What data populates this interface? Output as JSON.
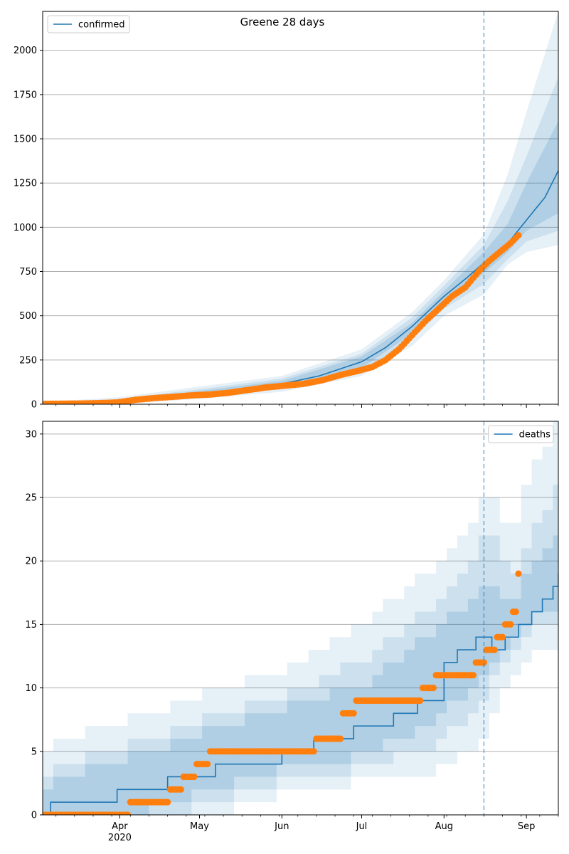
{
  "figure": {
    "suptitle": "Greene 28 days"
  },
  "chart_data": [
    {
      "type": "line",
      "legend": {
        "label": "confirmed",
        "placement": "top-left"
      },
      "title": "Greene 28 days",
      "ylim": [
        0,
        2220
      ],
      "xlim": [
        "2020-03-03",
        "2020-09-13"
      ],
      "y_ticks": [
        0,
        250,
        500,
        750,
        1000,
        1250,
        1500,
        1750,
        2000
      ],
      "grid": "y",
      "forecast_start": "2020-08-16",
      "x_tick_labels": [
        {
          "date": "2020-04-01",
          "label": "Apr",
          "sub": "2020"
        },
        {
          "date": "2020-05-01",
          "label": "May",
          "sub": ""
        },
        {
          "date": "2020-06-01",
          "label": "Jun",
          "sub": ""
        },
        {
          "date": "2020-07-01",
          "label": "Jul",
          "sub": ""
        },
        {
          "date": "2020-08-01",
          "label": "Aug",
          "sub": ""
        },
        {
          "date": "2020-09-01",
          "label": "Sep",
          "sub": ""
        }
      ],
      "model_line": {
        "x": [
          "2020-03-03",
          "2020-03-20",
          "2020-04-01",
          "2020-04-15",
          "2020-05-01",
          "2020-05-15",
          "2020-06-01",
          "2020-06-15",
          "2020-07-01",
          "2020-07-10",
          "2020-07-20",
          "2020-08-01",
          "2020-08-10",
          "2020-08-16",
          "2020-08-25",
          "2020-09-01",
          "2020-09-08",
          "2020-09-13"
        ],
        "y": [
          5,
          8,
          15,
          35,
          60,
          80,
          115,
          160,
          240,
          320,
          440,
          610,
          720,
          800,
          910,
          1040,
          1170,
          1320
        ]
      },
      "bands": [
        {
          "x": [
            "2020-03-03",
            "2020-04-01",
            "2020-05-01",
            "2020-06-01",
            "2020-07-01",
            "2020-07-20",
            "2020-08-01",
            "2020-08-16",
            "2020-08-25",
            "2020-09-01",
            "2020-09-13"
          ],
          "lo": [
            0,
            2,
            30,
            70,
            160,
            330,
            500,
            620,
            790,
            860,
            900
          ],
          "hi": [
            12,
            40,
            100,
            160,
            310,
            520,
            700,
            960,
            1300,
            1650,
            2220
          ]
        },
        {
          "x": [
            "2020-03-03",
            "2020-04-01",
            "2020-05-01",
            "2020-06-01",
            "2020-07-01",
            "2020-07-20",
            "2020-08-01",
            "2020-08-16",
            "2020-08-25",
            "2020-09-01",
            "2020-09-13"
          ],
          "lo": [
            0,
            6,
            40,
            85,
            185,
            370,
            540,
            680,
            820,
            920,
            980
          ],
          "hi": [
            9,
            30,
            85,
            145,
            285,
            490,
            670,
            900,
            1150,
            1400,
            1850
          ]
        },
        {
          "x": [
            "2020-03-03",
            "2020-04-01",
            "2020-05-01",
            "2020-06-01",
            "2020-07-01",
            "2020-07-20",
            "2020-08-01",
            "2020-08-16",
            "2020-08-25",
            "2020-09-01",
            "2020-09-13"
          ],
          "lo": [
            2,
            10,
            48,
            95,
            205,
            400,
            570,
            740,
            860,
            980,
            1080
          ],
          "hi": [
            7,
            22,
            75,
            132,
            270,
            460,
            640,
            860,
            1020,
            1250,
            1600
          ]
        }
      ],
      "observed": {
        "x": [
          "2020-03-03",
          "2020-03-10",
          "2020-03-17",
          "2020-03-24",
          "2020-03-31",
          "2020-04-07",
          "2020-04-14",
          "2020-04-21",
          "2020-04-28",
          "2020-05-05",
          "2020-05-12",
          "2020-05-19",
          "2020-05-26",
          "2020-06-02",
          "2020-06-09",
          "2020-06-16",
          "2020-06-23",
          "2020-06-30",
          "2020-07-05",
          "2020-07-10",
          "2020-07-15",
          "2020-07-20",
          "2020-07-25",
          "2020-07-30",
          "2020-08-04",
          "2020-08-09",
          "2020-08-14",
          "2020-08-18",
          "2020-08-22",
          "2020-08-26",
          "2020-08-29"
        ],
        "y": [
          2,
          3,
          4,
          6,
          10,
          25,
          35,
          42,
          50,
          55,
          65,
          80,
          95,
          105,
          115,
          135,
          165,
          190,
          210,
          250,
          310,
          390,
          470,
          540,
          610,
          660,
          750,
          810,
          860,
          910,
          955
        ]
      }
    },
    {
      "type": "line",
      "legend": {
        "label": "deaths",
        "placement": "top-right"
      },
      "ylim": [
        0,
        31
      ],
      "xlim": [
        "2020-03-03",
        "2020-09-13"
      ],
      "y_ticks": [
        0,
        5,
        10,
        15,
        20,
        25,
        30
      ],
      "grid": "y",
      "forecast_start": "2020-08-16",
      "x_tick_labels": [
        {
          "date": "2020-04-01",
          "label": "Apr",
          "sub": "2020"
        },
        {
          "date": "2020-05-01",
          "label": "May",
          "sub": ""
        },
        {
          "date": "2020-06-01",
          "label": "Jun",
          "sub": ""
        },
        {
          "date": "2020-07-01",
          "label": "Jul",
          "sub": ""
        },
        {
          "date": "2020-08-01",
          "label": "Aug",
          "sub": ""
        },
        {
          "date": "2020-09-01",
          "label": "Sep",
          "sub": ""
        }
      ],
      "model_line": {
        "x": [
          "2020-03-03",
          "2020-03-06",
          "2020-03-31",
          "2020-04-19",
          "2020-05-07",
          "2020-06-01",
          "2020-06-13",
          "2020-06-28",
          "2020-07-13",
          "2020-07-22",
          "2020-08-01",
          "2020-08-06",
          "2020-08-13",
          "2020-08-19",
          "2020-08-24",
          "2020-08-29",
          "2020-09-03",
          "2020-09-07",
          "2020-09-11",
          "2020-09-13"
        ],
        "y": [
          0,
          1,
          2,
          3,
          4,
          5,
          6,
          7,
          8,
          9,
          12,
          13,
          14,
          13,
          14,
          15,
          16,
          17,
          18,
          19
        ]
      },
      "bands": [
        {
          "x": [
            "2020-03-03",
            "2020-04-01",
            "2020-05-01",
            "2020-06-01",
            "2020-07-01",
            "2020-08-01",
            "2020-08-16",
            "2020-08-25",
            "2020-09-01",
            "2020-09-13"
          ],
          "lo": [
            0,
            0,
            0,
            2,
            3,
            4,
            6,
            10,
            12,
            14
          ],
          "hi": [
            5,
            7,
            9,
            11,
            15,
            20,
            25,
            22,
            27,
            31
          ]
        },
        {
          "x": [
            "2020-03-03",
            "2020-04-01",
            "2020-05-01",
            "2020-06-01",
            "2020-07-01",
            "2020-08-01",
            "2020-08-16",
            "2020-08-25",
            "2020-09-01",
            "2020-09-13"
          ],
          "lo": [
            0,
            0,
            1,
            3,
            4,
            6,
            9,
            12,
            14,
            16
          ],
          "hi": [
            3,
            5,
            7,
            9,
            12,
            17,
            22,
            18,
            22,
            26
          ]
        },
        {
          "x": [
            "2020-03-03",
            "2020-04-01",
            "2020-05-01",
            "2020-06-01",
            "2020-07-01",
            "2020-08-01",
            "2020-08-16",
            "2020-08-25",
            "2020-09-01",
            "2020-09-13"
          ],
          "lo": [
            0,
            0,
            2,
            4,
            5,
            8,
            11,
            13,
            15,
            17
          ],
          "hi": [
            2,
            4,
            6,
            8,
            10,
            15,
            18,
            16,
            19,
            22
          ]
        }
      ],
      "observed": {
        "x": [
          "2020-03-03",
          "2020-03-10",
          "2020-03-17",
          "2020-03-24",
          "2020-03-31",
          "2020-04-05",
          "2020-04-10",
          "2020-04-15",
          "2020-04-20",
          "2020-04-25",
          "2020-04-30",
          "2020-05-05",
          "2020-05-10",
          "2020-05-15",
          "2020-05-20",
          "2020-05-25",
          "2020-05-30",
          "2020-06-04",
          "2020-06-09",
          "2020-06-14",
          "2020-06-19",
          "2020-06-24",
          "2020-06-29",
          "2020-07-04",
          "2020-07-09",
          "2020-07-14",
          "2020-07-19",
          "2020-07-24",
          "2020-07-29",
          "2020-08-03",
          "2020-08-08",
          "2020-08-13",
          "2020-08-17",
          "2020-08-21",
          "2020-08-24",
          "2020-08-27",
          "2020-08-29"
        ],
        "y": [
          0,
          0,
          0,
          0,
          0,
          1,
          1,
          1,
          2,
          3,
          4,
          5,
          5,
          5,
          5,
          5,
          5,
          5,
          5,
          6,
          6,
          8,
          9,
          9,
          9,
          9,
          9,
          10,
          11,
          11,
          11,
          12,
          13,
          14,
          15,
          16,
          19
        ]
      }
    }
  ]
}
